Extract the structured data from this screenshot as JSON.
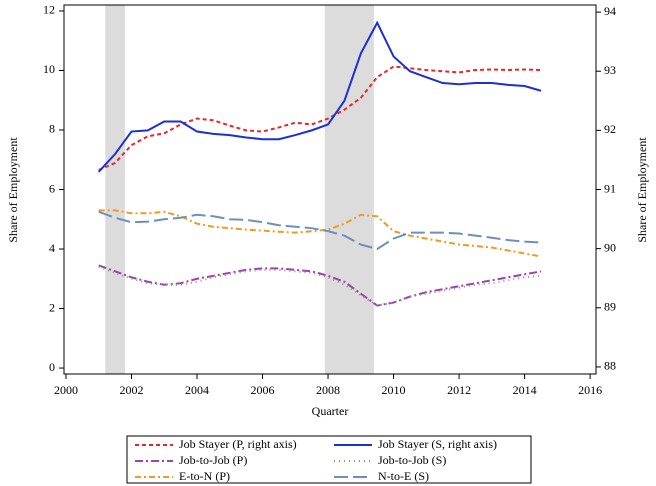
{
  "chart_data": {
    "type": "line",
    "xlabel": "Quarter",
    "ylabel": "Share of Employment",
    "y2label": "Share of Employment",
    "x": [
      2001,
      2001.5,
      2002,
      2002.5,
      2003,
      2003.5,
      2004,
      2004.5,
      2005,
      2005.5,
      2006,
      2006.5,
      2007,
      2007.5,
      2008,
      2008.5,
      2009,
      2009.5,
      2010,
      2010.5,
      2011,
      2011.5,
      2012,
      2012.5,
      2013,
      2013.5,
      2014,
      2014.5
    ],
    "shaded": [
      [
        2001.2,
        2001.8
      ],
      [
        2007.9,
        2009.4
      ]
    ],
    "series": [
      {
        "name": "Job Stayer (P, right axis)",
        "color": "#e8262a",
        "dash": "4,3",
        "axis": "y2",
        "values": [
          91.33,
          91.45,
          91.75,
          91.9,
          91.95,
          92.1,
          92.2,
          92.17,
          92.08,
          92.0,
          91.98,
          92.05,
          92.13,
          92.1,
          92.2,
          92.35,
          92.55,
          92.9,
          93.08,
          93.05,
          93.02,
          93.0,
          92.98,
          93.02,
          93.03,
          93.02,
          93.03,
          93.02
        ]
      },
      {
        "name": "Job Stayer (S, right axis)",
        "color": "#1a2fd6",
        "dash": "none",
        "axis": "y2",
        "values": [
          91.3,
          91.6,
          91.98,
          92.0,
          92.15,
          92.15,
          91.98,
          91.94,
          91.92,
          91.88,
          91.85,
          91.85,
          91.92,
          92.0,
          92.1,
          92.5,
          93.3,
          93.82,
          93.25,
          93.0,
          92.9,
          92.8,
          92.78,
          92.8,
          92.8,
          92.77,
          92.75,
          92.67
        ]
      },
      {
        "name": "Job-to-Job (P)",
        "color": "#a33cb5",
        "dash": "8,3,2,3",
        "values": [
          3.45,
          3.25,
          3.05,
          2.9,
          2.8,
          2.85,
          3.0,
          3.1,
          3.2,
          3.3,
          3.35,
          3.35,
          3.3,
          3.25,
          3.1,
          2.9,
          2.5,
          2.1,
          2.2,
          2.4,
          2.55,
          2.65,
          2.75,
          2.85,
          2.95,
          3.05,
          3.15,
          3.25
        ]
      },
      {
        "name": "Job-to-Job (S)",
        "color": "#8a9a7a",
        "dash": "1,4",
        "values": [
          3.4,
          3.2,
          3.0,
          2.85,
          2.8,
          2.8,
          2.9,
          3.05,
          3.15,
          3.25,
          3.3,
          3.3,
          3.25,
          3.2,
          3.05,
          2.8,
          2.45,
          2.1,
          2.2,
          2.4,
          2.5,
          2.6,
          2.7,
          2.8,
          2.85,
          2.95,
          3.05,
          3.1
        ]
      },
      {
        "name": "E-to-N (P)",
        "color": "#f29a1f",
        "dash": "6,3,2,3",
        "values": [
          5.3,
          5.3,
          5.2,
          5.2,
          5.25,
          5.1,
          4.85,
          4.75,
          4.7,
          4.65,
          4.62,
          4.58,
          4.55,
          4.6,
          4.65,
          4.85,
          5.15,
          5.1,
          4.6,
          4.45,
          4.35,
          4.25,
          4.15,
          4.1,
          4.05,
          3.95,
          3.85,
          3.75
        ]
      },
      {
        "name": "N-to-E (S)",
        "color": "#6c8fc0",
        "dash": "14,5",
        "values": [
          5.25,
          5.05,
          4.9,
          4.92,
          5.0,
          5.05,
          5.15,
          5.1,
          5.0,
          4.98,
          4.9,
          4.8,
          4.75,
          4.7,
          4.6,
          4.45,
          4.15,
          4.0,
          4.35,
          4.55,
          4.55,
          4.55,
          4.52,
          4.45,
          4.38,
          4.3,
          4.25,
          4.22
        ]
      }
    ],
    "xlim": [
      1999.94,
      2016.18
    ],
    "xticks": [
      2000,
      2002,
      2004,
      2006,
      2008,
      2010,
      2012,
      2014,
      2016
    ],
    "ylim": [
      -0.2,
      12.2
    ],
    "yticks": [
      0,
      2,
      4,
      6,
      8,
      10,
      12
    ],
    "y2lim": [
      87.88,
      94.12
    ],
    "y2ticks": [
      88,
      89,
      90,
      91,
      92,
      93,
      94
    ]
  }
}
